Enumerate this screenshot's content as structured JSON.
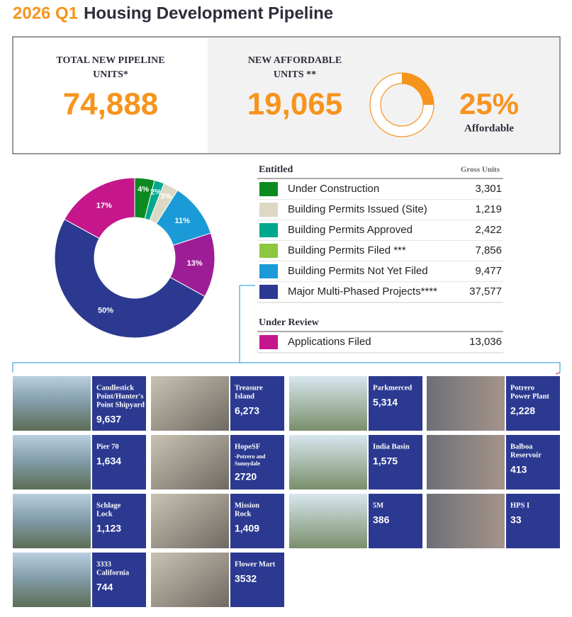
{
  "title_year": "2026 Q1",
  "title": "Housing Development Pipeline",
  "summary": {
    "total": {
      "label_lines": [
        "TOTAL NEW PIPELINE",
        "UNITS*"
      ],
      "value": "74,888"
    },
    "affordable": {
      "label_lines": [
        "NEW AFFORDABLE",
        "UNITS **"
      ],
      "value": "19,065"
    }
  },
  "chart_data": [
    {
      "type": "donut",
      "values": [
        25
      ],
      "value_labels": [
        "25%"
      ],
      "colors": [
        "#f7941d"
      ],
      "caption": "Affordable"
    },
    {
      "type": "donut",
      "values": [
        4,
        2,
        3,
        11,
        13,
        50,
        17
      ],
      "value_labels": [
        "4%",
        "2%",
        "3%",
        "11%",
        "13%",
        "50%",
        "17%"
      ],
      "colors": [
        "#0b8a1f",
        "#00a88f",
        "#dcd8c4",
        "#1a9ad6",
        "#9d1d96",
        "#2b3990",
        "#c5168c"
      ]
    }
  ],
  "entitled": {
    "heading": "Entitled",
    "column": "Gross Units",
    "rows": [
      {
        "label": "Under Construction",
        "value": "3,301",
        "color": "#0b8a1f"
      },
      {
        "label": "Building Permits Issued (Site)",
        "value": "1,219",
        "color": "#dcd8c4"
      },
      {
        "label": "Building Permits Approved",
        "value": "2,422",
        "color": "#00a88f"
      },
      {
        "label": "Building Permits Filed ***",
        "value": "7,856",
        "color": "#8dc63f"
      },
      {
        "label": "Building Permits Not Yet Filed",
        "value": "9,477",
        "color": "#1a9ad6"
      },
      {
        "label": "Major Multi-Phased Projects****",
        "value": "37,577",
        "color": "#2b3990"
      }
    ]
  },
  "under_review": {
    "heading": "Under Review",
    "rows": [
      {
        "label": "Applications Filed",
        "value": "13,036",
        "color": "#c5168c"
      }
    ]
  },
  "projects": [
    {
      "name_lines": [
        "Candlestick",
        "Point/Hunter's",
        "Point Shipyard"
      ],
      "units": "9,637"
    },
    {
      "name_lines": [
        "Treasure",
        "Island"
      ],
      "units": "6,273"
    },
    {
      "name_lines": [
        "Parkmerced"
      ],
      "units": "5,314"
    },
    {
      "name_lines": [
        "Potrero",
        "Power Plant"
      ],
      "units": "2,228"
    },
    {
      "name_lines": [
        "Pier 70"
      ],
      "units": "1,634"
    },
    {
      "name_lines": [
        "HopeSF"
      ],
      "note_lines": [
        "-Potrero and",
        "Sunnydale"
      ],
      "units": "2720"
    },
    {
      "name_lines": [
        "India Basin"
      ],
      "units": "1,575"
    },
    {
      "name_lines": [
        "Balboa",
        "Reservoir"
      ],
      "units": "413"
    },
    {
      "name_lines": [
        "Schlage",
        "Lock"
      ],
      "units": "1,123"
    },
    {
      "name_lines": [
        "Mission",
        "Rock"
      ],
      "units": "1,409"
    },
    {
      "name_lines": [
        "5M"
      ],
      "units": "386"
    },
    {
      "name_lines": [
        "HPS I"
      ],
      "units": "33"
    },
    {
      "name_lines": [
        "3333",
        "California"
      ],
      "units": "744"
    },
    {
      "name_lines": [
        "Flower Mart"
      ],
      "units": "3532"
    }
  ]
}
